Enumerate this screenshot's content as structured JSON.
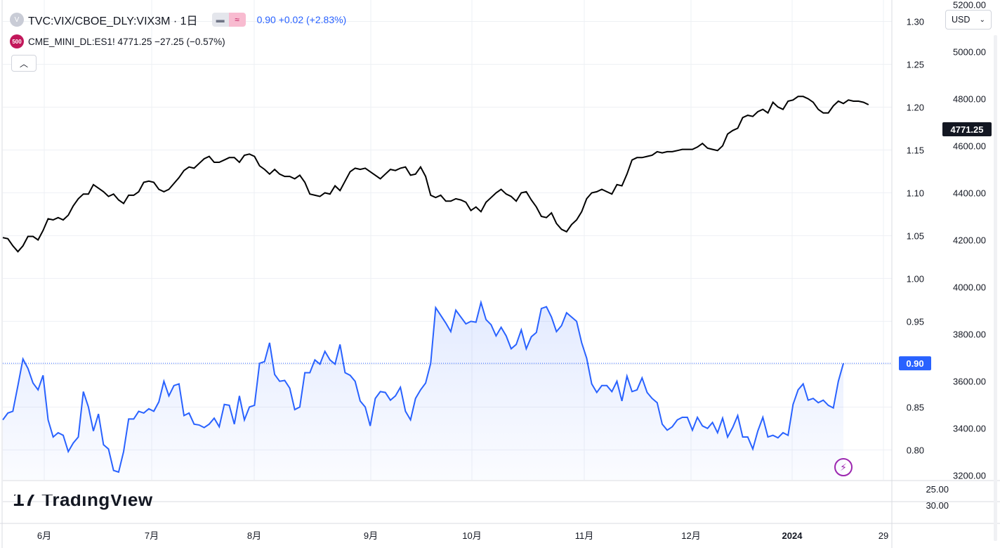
{
  "legend": {
    "primary": {
      "badge": "V",
      "title": "TVC:VIX/CBOE_DLY:VIX3M · 1日",
      "values": "0.90 +0.02 (+2.83%)",
      "color": "#2962ff"
    },
    "secondary": {
      "badge": "500",
      "text": "CME_MINI_DL:ES1!  4771.25  −27.25 (−0.57%)",
      "color": "#000000"
    }
  },
  "controls": {
    "hide_icon": "eye-off-icon",
    "compare_icon": "approx-icon",
    "collapse_icon": "chevron-up-icon",
    "currency_label": "USD",
    "currency_icon": "chevron-down-icon"
  },
  "branding": {
    "logo_mark": "17",
    "logo_text": "TradingView"
  },
  "colors": {
    "ratio_line": "#2962ff",
    "es_line": "#000000",
    "grid": "#eef0f4",
    "label_dark": "#131722"
  },
  "chart_data": {
    "type": "line",
    "x_ticks": [
      "6月",
      "7月",
      "8月",
      "9月",
      "10月",
      "11月",
      "12月",
      "2024",
      "29"
    ],
    "series": [
      {
        "name": "TVC:VIX/CBOE_DLY:VIX3M",
        "axis": "left-scale",
        "last_value_label": "0.90",
        "values": [
          0.835,
          0.843,
          0.845,
          0.875,
          0.906,
          0.895,
          0.878,
          0.87,
          0.887,
          0.835,
          0.815,
          0.82,
          0.817,
          0.798,
          0.808,
          0.815,
          0.868,
          0.85,
          0.822,
          0.842,
          0.806,
          0.801,
          0.776,
          0.774,
          0.798,
          0.836,
          0.836,
          0.845,
          0.843,
          0.848,
          0.845,
          0.856,
          0.88,
          0.863,
          0.875,
          0.877,
          0.84,
          0.843,
          0.83,
          0.829,
          0.826,
          0.83,
          0.837,
          0.827,
          0.853,
          0.852,
          0.83,
          0.863,
          0.835,
          0.85,
          0.852,
          0.901,
          0.903,
          0.925,
          0.888,
          0.88,
          0.881,
          0.872,
          0.847,
          0.85,
          0.89,
          0.89,
          0.905,
          0.9,
          0.915,
          0.905,
          0.9,
          0.923,
          0.89,
          0.887,
          0.88,
          0.857,
          0.85,
          0.828,
          0.86,
          0.868,
          0.867,
          0.858,
          0.863,
          0.873,
          0.845,
          0.835,
          0.86,
          0.87,
          0.878,
          0.901,
          0.966,
          0.957,
          0.948,
          0.938,
          0.963,
          0.955,
          0.947,
          0.95,
          0.949,
          0.972,
          0.952,
          0.946,
          0.933,
          0.943,
          0.933,
          0.918,
          0.923,
          0.94,
          0.918,
          0.932,
          0.937,
          0.965,
          0.967,
          0.955,
          0.938,
          0.945,
          0.96,
          0.955,
          0.95,
          0.925,
          0.907,
          0.877,
          0.867,
          0.875,
          0.875,
          0.868,
          0.88,
          0.857,
          0.886,
          0.868,
          0.87,
          0.884,
          0.867,
          0.86,
          0.855,
          0.83,
          0.823,
          0.827,
          0.835,
          0.838,
          0.838,
          0.823,
          0.838,
          0.828,
          0.825,
          0.832,
          0.82,
          0.837,
          0.815,
          0.826,
          0.84,
          0.815,
          0.815,
          0.801,
          0.822,
          0.838,
          0.815,
          0.817,
          0.814,
          0.82,
          0.817,
          0.853,
          0.87,
          0.877,
          0.858,
          0.86,
          0.855,
          0.858,
          0.852,
          0.849,
          0.88,
          0.901
        ]
      },
      {
        "name": "CME_MINI_DL:ES1!",
        "axis": "right-scale",
        "last_value_label": "4771.25",
        "values": [
          4210,
          4205,
          4175,
          4150,
          4175,
          4215,
          4215,
          4200,
          4240,
          4290,
          4285,
          4295,
          4285,
          4305,
          4345,
          4375,
          4395,
          4395,
          4435,
          4420,
          4405,
          4385,
          4395,
          4370,
          4355,
          4390,
          4390,
          4405,
          4445,
          4450,
          4445,
          4415,
          4405,
          4415,
          4440,
          4465,
          4495,
          4510,
          4505,
          4525,
          4545,
          4555,
          4530,
          4530,
          4540,
          4550,
          4550,
          4530,
          4560,
          4565,
          4555,
          4515,
          4500,
          4480,
          4500,
          4480,
          4470,
          4470,
          4460,
          4475,
          4445,
          4395,
          4390,
          4385,
          4400,
          4395,
          4430,
          4410,
          4450,
          4490,
          4505,
          4500,
          4505,
          4490,
          4475,
          4460,
          4480,
          4500,
          4495,
          4505,
          4510,
          4475,
          4480,
          4510,
          4470,
          4390,
          4380,
          4390,
          4365,
          4365,
          4375,
          4370,
          4360,
          4325,
          4340,
          4320,
          4360,
          4380,
          4400,
          4415,
          4395,
          4385,
          4365,
          4400,
          4405,
          4370,
          4340,
          4300,
          4295,
          4315,
          4270,
          4245,
          4235,
          4265,
          4285,
          4320,
          4375,
          4400,
          4405,
          4415,
          4405,
          4395,
          4435,
          4430,
          4480,
          4540,
          4550,
          4550,
          4555,
          4560,
          4575,
          4570,
          4575,
          4575,
          4580,
          4585,
          4585,
          4585,
          4595,
          4610,
          4590,
          4585,
          4580,
          4600,
          4650,
          4665,
          4675,
          4720,
          4730,
          4725,
          4745,
          4755,
          4740,
          4785,
          4765,
          4755,
          4790,
          4795,
          4810,
          4810,
          4800,
          4785,
          4755,
          4740,
          4740,
          4770,
          4790,
          4780,
          4795,
          4790,
          4790,
          4785,
          4775
        ]
      }
    ],
    "left_scale": {
      "ticks": [
        "1.30",
        "1.25",
        "1.20",
        "1.15",
        "1.10",
        "1.05",
        "1.00",
        "0.95",
        "0.90",
        "0.85",
        "0.80"
      ],
      "range": [
        0.765,
        1.325
      ]
    },
    "right_scale": {
      "ticks": [
        "5200.00",
        "5000.00",
        "4800.00",
        "4600.00",
        "4400.00",
        "4200.00",
        "4000.00",
        "3800.00",
        "3600.00",
        "3400.00",
        "3200.00"
      ],
      "range": [
        3180,
        5220
      ]
    },
    "lower_pane": {
      "ticks": [
        "25.00",
        "30.00"
      ]
    },
    "grid": true,
    "legend_position": "top-left"
  }
}
